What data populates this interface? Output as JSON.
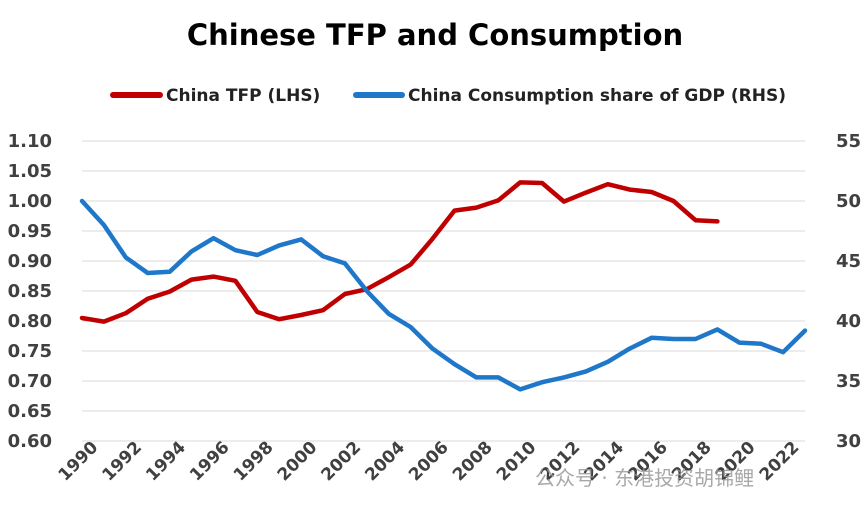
{
  "chart_data": {
    "type": "line",
    "title": "Chinese TFP and Consumption",
    "legend": {
      "placement": "top",
      "entries": [
        "China TFP (LHS)",
        "China Consumption share of GDP (RHS)"
      ]
    },
    "grid": "horizontal",
    "x": [
      1990,
      1991,
      1992,
      1993,
      1994,
      1995,
      1996,
      1997,
      1998,
      1999,
      2000,
      2001,
      2002,
      2003,
      2004,
      2005,
      2006,
      2007,
      2008,
      2009,
      2010,
      2011,
      2012,
      2013,
      2014,
      2015,
      2016,
      2017,
      2018,
      2019,
      2020,
      2021,
      2022,
      2023
    ],
    "x_tick_labels": [
      "1990",
      "1992",
      "1994",
      "1996",
      "1998",
      "2000",
      "2002",
      "2004",
      "2006",
      "2008",
      "2010",
      "2012",
      "2014",
      "2016",
      "2018",
      "2020",
      "2022"
    ],
    "y_left": {
      "ylim": [
        0.6,
        1.1
      ],
      "tick_labels": [
        "1.10",
        "1.05",
        "1.00",
        "0.95",
        "0.90",
        "0.85",
        "0.80",
        "0.75",
        "0.70",
        "0.65",
        "0.60"
      ]
    },
    "y_right": {
      "ylim": [
        30,
        55
      ],
      "tick_labels": [
        "55",
        "50",
        "45",
        "40",
        "35",
        "30"
      ]
    },
    "series": [
      {
        "name": "China TFP (LHS)",
        "axis": "left",
        "color": "#c00000",
        "values": [
          0.805,
          0.799,
          0.813,
          0.837,
          0.849,
          0.869,
          0.874,
          0.867,
          0.815,
          0.803,
          0.81,
          0.818,
          0.845,
          0.853,
          0.873,
          0.894,
          0.937,
          0.984,
          0.989,
          1.001,
          1.031,
          1.03,
          0.999,
          1.014,
          1.028,
          1.019,
          1.015,
          1.0,
          0.968,
          0.966,
          null,
          null,
          null,
          null
        ]
      },
      {
        "name": "China Consumption share of GDP (RHS)",
        "axis": "right",
        "color": "#1f77c9",
        "values": [
          50.0,
          48.0,
          45.3,
          44.0,
          44.1,
          45.8,
          46.9,
          45.9,
          45.5,
          46.3,
          46.8,
          45.4,
          44.8,
          42.5,
          40.6,
          39.5,
          37.7,
          36.4,
          35.3,
          35.3,
          34.3,
          34.9,
          35.3,
          35.8,
          36.6,
          37.7,
          38.6,
          38.5,
          38.5,
          39.3,
          38.2,
          38.1,
          37.4,
          39.2
        ]
      }
    ]
  },
  "watermark": {
    "text": "公众号 · 东港投资胡锦鲤"
  }
}
